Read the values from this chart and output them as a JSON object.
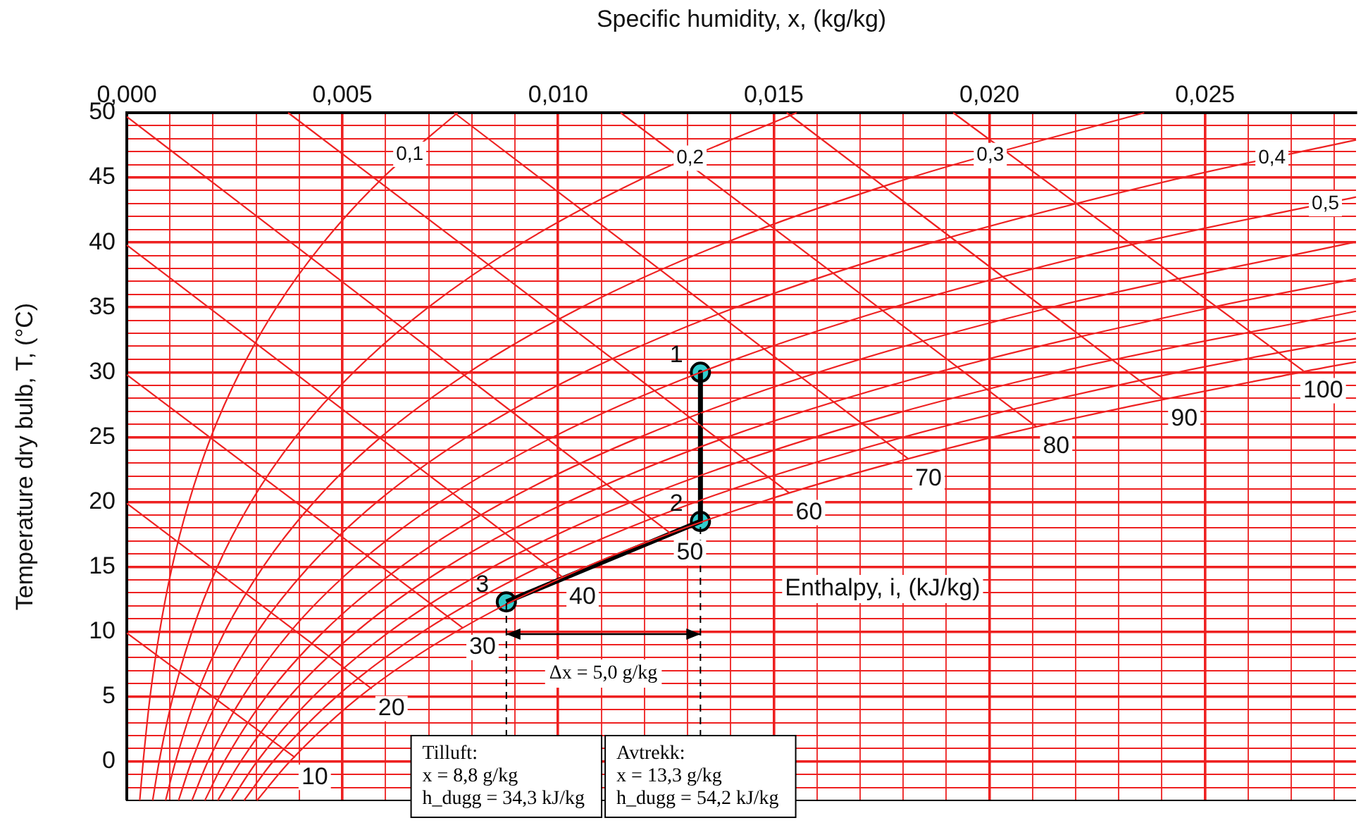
{
  "chart_data": {
    "type": "line",
    "xlabel": "Specific humidity, x, (kg/kg)",
    "ylabel": "Temperature dry bulb, T, (°C)",
    "xlim": [
      0,
      0.0285
    ],
    "ylim": [
      -3,
      50
    ],
    "xticks": [
      {
        "value": 0,
        "label": "0,000"
      },
      {
        "value": 0.001,
        "label": null
      },
      {
        "value": 0.002,
        "label": null
      },
      {
        "value": 0.003,
        "label": null
      },
      {
        "value": 0.004,
        "label": null
      },
      {
        "value": 0.005,
        "label": "0,005"
      },
      {
        "value": 0.006,
        "label": null
      },
      {
        "value": 0.007,
        "label": null
      },
      {
        "value": 0.008,
        "label": null
      },
      {
        "value": 0.009,
        "label": null
      },
      {
        "value": 0.01,
        "label": "0,010"
      },
      {
        "value": 0.011,
        "label": null
      },
      {
        "value": 0.012,
        "label": null
      },
      {
        "value": 0.013,
        "label": null
      },
      {
        "value": 0.014,
        "label": null
      },
      {
        "value": 0.015,
        "label": "0,015"
      },
      {
        "value": 0.016,
        "label": null
      },
      {
        "value": 0.017,
        "label": null
      },
      {
        "value": 0.018,
        "label": null
      },
      {
        "value": 0.019,
        "label": null
      },
      {
        "value": 0.02,
        "label": "0,020"
      },
      {
        "value": 0.021,
        "label": null
      },
      {
        "value": 0.022,
        "label": null
      },
      {
        "value": 0.023,
        "label": null
      },
      {
        "value": 0.024,
        "label": null
      },
      {
        "value": 0.025,
        "label": "0,025"
      },
      {
        "value": 0.026,
        "label": null
      },
      {
        "value": 0.027,
        "label": null
      },
      {
        "value": 0.028,
        "label": null
      }
    ],
    "yticks": [
      {
        "value": -3,
        "label": null
      },
      {
        "value": -2,
        "label": null
      },
      {
        "value": -1,
        "label": null
      },
      0,
      {
        "value": 1,
        "label": null
      },
      {
        "value": 2,
        "label": null
      },
      {
        "value": 3,
        "label": null
      },
      {
        "value": 4,
        "label": null
      },
      5,
      {
        "value": 6,
        "label": null
      },
      {
        "value": 7,
        "label": null
      },
      {
        "value": 8,
        "label": null
      },
      {
        "value": 9,
        "label": null
      },
      10,
      {
        "value": 11,
        "label": null
      },
      {
        "value": 12,
        "label": null
      },
      {
        "value": 13,
        "label": null
      },
      {
        "value": 14,
        "label": null
      },
      15,
      {
        "value": 16,
        "label": null
      },
      {
        "value": 17,
        "label": null
      },
      {
        "value": 18,
        "label": null
      },
      {
        "value": 19,
        "label": null
      },
      20,
      {
        "value": 21,
        "label": null
      },
      {
        "value": 22,
        "label": null
      },
      {
        "value": 23,
        "label": null
      },
      {
        "value": 24,
        "label": null
      },
      25,
      {
        "value": 26,
        "label": null
      },
      {
        "value": 27,
        "label": null
      },
      {
        "value": 28,
        "label": null
      },
      {
        "value": 29,
        "label": null
      },
      30,
      {
        "value": 31,
        "label": null
      },
      {
        "value": 32,
        "label": null
      },
      {
        "value": 33,
        "label": null
      },
      {
        "value": 34,
        "label": null
      },
      35,
      {
        "value": 36,
        "label": null
      },
      {
        "value": 37,
        "label": null
      },
      {
        "value": 38,
        "label": null
      },
      {
        "value": 39,
        "label": null
      },
      40,
      {
        "value": 41,
        "label": null
      },
      {
        "value": 42,
        "label": null
      },
      {
        "value": 43,
        "label": null
      },
      {
        "value": 44,
        "label": null
      },
      45,
      {
        "value": 46,
        "label": null
      },
      {
        "value": 47,
        "label": null
      },
      {
        "value": 48,
        "label": null
      },
      {
        "value": 49,
        "label": null
      },
      50
    ],
    "grid": true,
    "legend": false,
    "marker": "none",
    "line_style": "solid",
    "series": [
      {
        "color": "#ee2222",
        "x": [
          0.0003,
          0.00038,
          0.00054,
          0.00076,
          0.00105,
          0.00144,
          0.00195,
          0.00262,
          0.00347,
          0.00456,
          0.00594,
          0.00767
        ],
        "values": [
          -3,
          0,
          5,
          10,
          15,
          20,
          25,
          30,
          35,
          40,
          45,
          50
        ]
      },
      {
        "color": "#ee2222",
        "x": [
          0.0006,
          0.00075,
          0.00107,
          0.00151,
          0.0021,
          0.00288,
          0.00391,
          0.00526,
          0.00699,
          0.00919,
          0.012,
          0.01553
        ],
        "values": [
          -3,
          0,
          5,
          10,
          15,
          20,
          25,
          30,
          35,
          40,
          45,
          50
        ]
      },
      {
        "color": "#ee2222",
        "x": [
          0.0009,
          0.00113,
          0.00161,
          0.00227,
          0.00316,
          0.00434,
          0.00589,
          0.00793,
          0.01054,
          0.01389,
          0.01818,
          0.02359
        ],
        "values": [
          -3,
          0,
          5,
          10,
          15,
          20,
          25,
          30,
          35,
          40,
          45,
          50
        ]
      },
      {
        "color": "#ee2222",
        "x": [
          0.0012,
          0.0015,
          0.00215,
          0.00303,
          0.00422,
          0.0058,
          0.00788,
          0.0106,
          0.01412,
          0.01867,
          0.02447,
          0.0285
        ],
        "values": [
          -3,
          0,
          5,
          10,
          15,
          20,
          25,
          30,
          35,
          40,
          45,
          47.9
        ]
      },
      {
        "color": "#ee2222",
        "x": [
          0.00151,
          0.00188,
          0.00269,
          0.00379,
          0.00528,
          0.00726,
          0.00988,
          0.01331,
          0.01777,
          0.02351,
          0.0285
        ],
        "values": [
          -3,
          0,
          5,
          10,
          15,
          20,
          25,
          30,
          35,
          40,
          43.5
        ]
      },
      {
        "color": "#ee2222",
        "x": [
          0.00181,
          0.00226,
          0.00323,
          0.00456,
          0.00635,
          0.00874,
          0.0119,
          0.01604,
          0.02143,
          0.02843
        ],
        "values": [
          -3,
          0,
          5,
          10,
          15,
          20,
          25,
          30,
          35,
          40
        ]
      },
      {
        "color": "#ee2222",
        "x": [
          0.00211,
          0.00264,
          0.00377,
          0.00532,
          0.00742,
          0.01022,
          0.01392,
          0.0188,
          0.02516,
          0.0285
        ],
        "values": [
          -3,
          0,
          5,
          10,
          15,
          20,
          25,
          30,
          35,
          37.2
        ]
      },
      {
        "color": "#ee2222",
        "x": [
          0.00242,
          0.00302,
          0.00432,
          0.00609,
          0.00849,
          0.0117,
          0.01596,
          0.02158,
          0.0285
        ],
        "values": [
          -3,
          0,
          5,
          10,
          15,
          20,
          25,
          30,
          34.7
        ]
      },
      {
        "color": "#ee2222",
        "x": [
          0.00272,
          0.00339,
          0.00486,
          0.00686,
          0.00957,
          0.01319,
          0.01801,
          0.02437,
          0.0285
        ],
        "values": [
          -3,
          0,
          5,
          10,
          15,
          20,
          25,
          30,
          32.6
        ]
      },
      {
        "color": "#ee2222",
        "x": [
          0.00302,
          0.00378,
          0.0054,
          0.00763,
          0.01065,
          0.0147,
          0.02008,
          0.02721,
          0.0285
        ],
        "values": [
          -3,
          0,
          5,
          10,
          15,
          20,
          25,
          30,
          30.8
        ]
      },
      {
        "color": "#ee2222",
        "x": [
          0,
          0.0039
        ],
        "values": [
          9.9,
          0.3
        ]
      },
      {
        "color": "#ee2222",
        "x": [
          0,
          0.00568
        ],
        "values": [
          19.9,
          5.6
        ]
      },
      {
        "color": "#ee2222",
        "x": [
          0,
          0.00779
        ],
        "values": [
          29.8,
          10.3
        ]
      },
      {
        "color": "#ee2222",
        "x": [
          0,
          0.01011
        ],
        "values": [
          39.8,
          14.2
        ]
      },
      {
        "color": "#ee2222",
        "x": [
          0,
          0.0126
        ],
        "values": [
          49.7,
          17.6
        ]
      },
      {
        "color": "#ee2222",
        "x": [
          0.00374,
          0.01536
        ],
        "values": [
          50,
          20.7
        ]
      },
      {
        "color": "#ee2222",
        "x": [
          0.00759,
          0.01813
        ],
        "values": [
          50,
          23.3
        ]
      },
      {
        "color": "#ee2222",
        "x": [
          0.01145,
          0.02109
        ],
        "values": [
          50,
          25.8
        ]
      },
      {
        "color": "#ee2222",
        "x": [
          0.0153,
          0.02406
        ],
        "values": [
          50,
          27.9
        ]
      },
      {
        "color": "#ee2222",
        "x": [
          0.01916,
          0.02728
        ],
        "values": [
          50,
          30.1
        ]
      },
      {
        "color": "#000000",
        "x": [
          0.0133,
          0.0133,
          0.0088
        ],
        "values": [
          30,
          18.5,
          12.3
        ]
      },
      {
        "type": "scatter",
        "marker": "circle",
        "color": "#33cccc",
        "x": [
          0.0133,
          0.0133,
          0.0088
        ],
        "values": [
          30,
          18.5,
          12.3
        ]
      }
    ],
    "ref_lines": [
      {
        "axis": "x",
        "value": 0.0088,
        "color": "#000000",
        "line_style": "dashed"
      },
      {
        "axis": "x",
        "value": 0.0133,
        "color": "#000000",
        "line_style": "dashed"
      }
    ],
    "annotations": [
      {
        "text": "0,1",
        "x": 0.00656,
        "y": 46.8
      },
      {
        "text": "0,2",
        "x": 0.01306,
        "y": 46.5
      },
      {
        "text": "0,3",
        "x": 0.02002,
        "y": 46.7
      },
      {
        "text": "0,4",
        "x": 0.02655,
        "y": 46.5
      },
      {
        "text": "0,5",
        "x": 0.02779,
        "y": 43
      },
      {
        "text": "10",
        "x": 0.0039,
        "y": 0.3
      },
      {
        "text": "20",
        "x": 0.00568,
        "y": 5.6
      },
      {
        "text": "30",
        "x": 0.00779,
        "y": 10.3
      },
      {
        "text": "40",
        "x": 0.01011,
        "y": 14.2
      },
      {
        "text": "50",
        "x": 0.0126,
        "y": 17.6
      },
      {
        "text": "60",
        "x": 0.01536,
        "y": 20.7
      },
      {
        "text": "70",
        "x": 0.01813,
        "y": 23.3
      },
      {
        "text": "80",
        "x": 0.02109,
        "y": 25.8
      },
      {
        "text": "90",
        "x": 0.02406,
        "y": 27.9
      },
      {
        "text": "100",
        "x": 0.02728,
        "y": 30.1
      },
      {
        "text": "1",
        "x": 0.0133,
        "y": 30
      },
      {
        "text": "2",
        "x": 0.0133,
        "y": 18.5
      },
      {
        "text": "3",
        "x": 0.0088,
        "y": 12.3
      },
      "Δx = 5,0 g/kg",
      "Enthalpy, i, (kJ/kg)",
      {
        "text": "Tilluft:\nx = 8,8 g/kg\nh_dugg = 34,3 kJ/kg",
        "x": 0.0088,
        "y": 2
      },
      {
        "text": "Avtrekk:\nx = 13,3 g/kg\nh_dugg = 54,2 kJ/kg",
        "x": 0.0133,
        "y": 2
      }
    ]
  }
}
